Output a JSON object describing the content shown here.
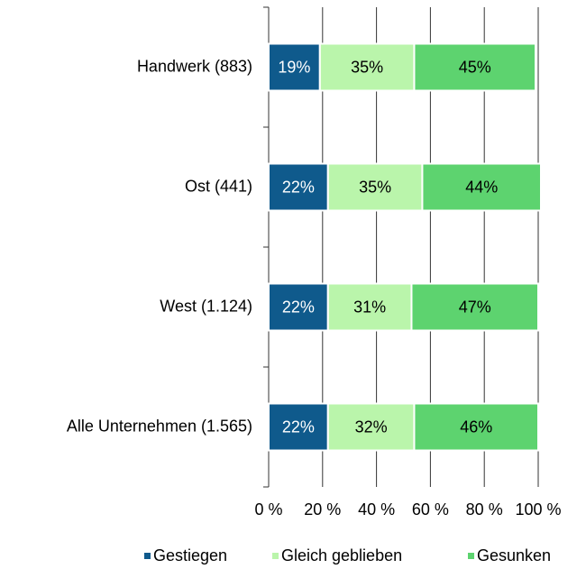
{
  "chart_data": {
    "type": "stacked_barh",
    "categories": [
      "Handwerk (883)",
      "Ost (441)",
      "West (1.124)",
      "Alle Unternehmen (1.565)"
    ],
    "series": [
      {
        "name": "Gestiegen",
        "color": "#0f5a8c",
        "label_color": "#ffffff",
        "values": [
          19,
          22,
          22,
          22
        ],
        "value_labels": [
          "19%",
          "22%",
          "22%",
          "22%"
        ]
      },
      {
        "name": "Gleich geblieben",
        "color": "#baf5ab",
        "label_color": "#000000",
        "values": [
          35,
          35,
          31,
          32
        ],
        "value_labels": [
          "35%",
          "35%",
          "31%",
          "32%"
        ]
      },
      {
        "name": "Gesunken",
        "color": "#5dd36f",
        "label_color": "#000000",
        "values": [
          45,
          44,
          47,
          46
        ],
        "value_labels": [
          "45%",
          "44%",
          "47%",
          "46%"
        ]
      }
    ],
    "xlim": [
      0,
      100
    ],
    "xticks": [
      {
        "value": 0,
        "label": "0 %"
      },
      {
        "value": 20,
        "label": "20 %"
      },
      {
        "value": 40,
        "label": "40 %"
      },
      {
        "value": 60,
        "label": "60 %"
      },
      {
        "value": 80,
        "label": "80 %"
      },
      {
        "value": 100,
        "label": "100 %"
      }
    ],
    "grid": true,
    "legend": "bottom"
  }
}
